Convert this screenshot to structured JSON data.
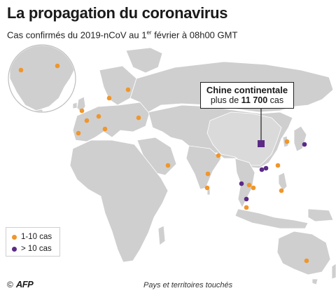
{
  "title": "La propagation du coronavirus",
  "subtitle_main": "Cas confirmés du 2019-nCoV au 1",
  "subtitle_sup": "er",
  "subtitle_end": " février à 08h00 GMT",
  "callout": {
    "line1": "Chine continentale",
    "line2_prefix": "plus de ",
    "line2_value": "11 700",
    "line2_suffix": " cas"
  },
  "legend": [
    {
      "label": "1-10 cas",
      "color": "#f0962a"
    },
    {
      "label": "> 10 cas",
      "color": "#5b2a86"
    }
  ],
  "colors": {
    "land": "#cfcfcf",
    "sea": "#ffffff",
    "china": "#5b2a86",
    "few_cases": "#f0962a",
    "many_cases": "#5b2a86"
  },
  "credit": {
    "symbol": "©",
    "agency": "AFP"
  },
  "caption": "Pays et territoires touchés",
  "markers": [
    {
      "place": "Canada/USA west",
      "category": "few"
    },
    {
      "place": "USA east",
      "category": "few"
    },
    {
      "place": "Finland",
      "category": "few"
    },
    {
      "place": "Sweden",
      "category": "few"
    },
    {
      "place": "UK",
      "category": "few"
    },
    {
      "place": "Germany",
      "category": "few"
    },
    {
      "place": "France",
      "category": "few"
    },
    {
      "place": "Spain",
      "category": "few"
    },
    {
      "place": "Italy",
      "category": "few"
    },
    {
      "place": "Russia",
      "category": "few"
    },
    {
      "place": "UAE",
      "category": "few"
    },
    {
      "place": "India",
      "category": "few"
    },
    {
      "place": "Sri Lanka",
      "category": "few"
    },
    {
      "place": "Nepal",
      "category": "few"
    },
    {
      "place": "Cambodia",
      "category": "few"
    },
    {
      "place": "Vietnam",
      "category": "few"
    },
    {
      "place": "Thailand",
      "category": "many"
    },
    {
      "place": "Malaysia",
      "category": "few"
    },
    {
      "place": "Singapore",
      "category": "many"
    },
    {
      "place": "Philippines",
      "category": "few"
    },
    {
      "place": "Taiwan",
      "category": "few"
    },
    {
      "place": "Hong Kong",
      "category": "many"
    },
    {
      "place": "Macao",
      "category": "many"
    },
    {
      "place": "South Korea",
      "category": "few"
    },
    {
      "place": "Japan",
      "category": "many"
    },
    {
      "place": "Australia",
      "category": "few"
    }
  ]
}
